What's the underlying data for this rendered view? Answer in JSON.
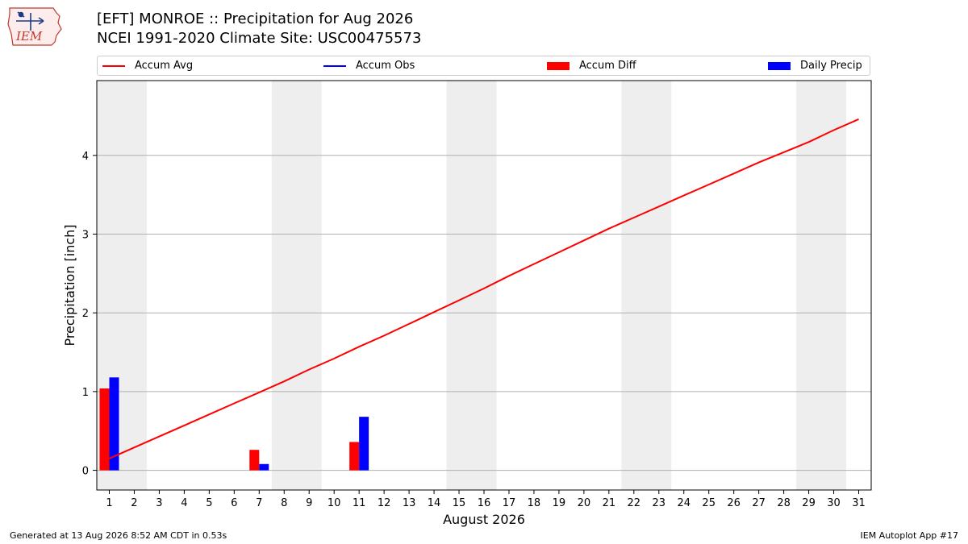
{
  "header": {
    "title_line1": "[EFT] MONROE :: Precipitation for Aug 2026",
    "title_line2": "NCEI 1991-2020 Climate Site: USC00475573",
    "logo_text": "IEM"
  },
  "legend": {
    "location": "top, above plot",
    "items": [
      {
        "label": "Accum Avg",
        "kind": "line",
        "color": "#ff0000"
      },
      {
        "label": "Accum Obs",
        "kind": "line",
        "color": "#0000ff"
      },
      {
        "label": "Accum Diff",
        "kind": "patch",
        "color": "#ff0000"
      },
      {
        "label": "Daily Precip",
        "kind": "patch",
        "color": "#0000ff"
      }
    ]
  },
  "footer": {
    "generated": "Generated at 13 Aug 2026 8:52 AM CDT in 0.53s",
    "app": "IEM Autoplot App #17"
  },
  "chart_data": {
    "type": "bar",
    "xlabel": "August 2026",
    "ylabel": "Precipitation [inch]",
    "xlim": [
      0.5,
      31.5
    ],
    "ylim": [
      -0.25,
      4.95
    ],
    "x_ticks": [
      1,
      2,
      3,
      4,
      5,
      6,
      7,
      8,
      9,
      10,
      11,
      12,
      13,
      14,
      15,
      16,
      17,
      18,
      19,
      20,
      21,
      22,
      23,
      24,
      25,
      26,
      27,
      28,
      29,
      30,
      31
    ],
    "y_ticks": [
      0,
      1,
      2,
      3,
      4
    ],
    "grid": "horizontal",
    "weekend_shading": [
      [
        1,
        2
      ],
      [
        8,
        9
      ],
      [
        15,
        16
      ],
      [
        22,
        23
      ],
      [
        29,
        30
      ]
    ],
    "series": [
      {
        "name": "Accum Avg",
        "kind": "line",
        "color": "#ff0000",
        "x": [
          1,
          2,
          3,
          4,
          5,
          6,
          7,
          8,
          9,
          10,
          11,
          12,
          13,
          14,
          15,
          16,
          17,
          18,
          19,
          20,
          21,
          22,
          23,
          24,
          25,
          26,
          27,
          28,
          29,
          30,
          31
        ],
        "values": [
          0.15,
          0.29,
          0.43,
          0.57,
          0.71,
          0.85,
          0.99,
          1.13,
          1.28,
          1.42,
          1.57,
          1.71,
          1.86,
          2.01,
          2.16,
          2.31,
          2.47,
          2.62,
          2.77,
          2.92,
          3.07,
          3.21,
          3.35,
          3.49,
          3.63,
          3.77,
          3.91,
          4.04,
          4.17,
          4.32,
          4.46
        ]
      },
      {
        "name": "Accum Obs",
        "kind": "line",
        "color": "#0000ff",
        "x": [],
        "values": []
      },
      {
        "name": "Accum Diff",
        "kind": "bar",
        "color": "#ff0000",
        "x": [
          1,
          7,
          11
        ],
        "values": [
          1.04,
          0.26,
          0.36
        ]
      },
      {
        "name": "Daily Precip",
        "kind": "bar",
        "color": "#0000ff",
        "x": [
          1,
          7,
          11
        ],
        "values": [
          1.18,
          0.08,
          0.68
        ]
      }
    ]
  }
}
